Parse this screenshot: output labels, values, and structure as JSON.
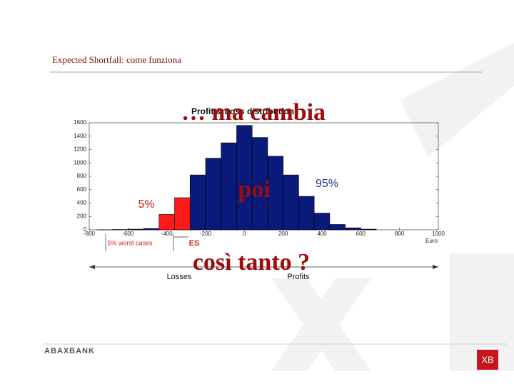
{
  "header": {
    "title": "Expected Shortfall: come funziona"
  },
  "chart_data": {
    "type": "histogram",
    "title": "Profit & Loss distribution",
    "bins": [
      -760,
      -680,
      -600,
      -520,
      -440,
      -360,
      -280,
      -200,
      -120,
      -40,
      40,
      120,
      200,
      280,
      360,
      440,
      520,
      600,
      680
    ],
    "counts": [
      2,
      5,
      10,
      20,
      230,
      480,
      820,
      1070,
      1300,
      1560,
      1380,
      1100,
      820,
      500,
      250,
      80,
      30,
      10
    ],
    "colors": [
      "#0a1a7a",
      "#0a1a7a",
      "#0a1a7a",
      "#0a1a7a",
      "#ff1a1a",
      "#ff1a1a",
      "#0a1a7a",
      "#0a1a7a",
      "#0a1a7a",
      "#0a1a7a",
      "#0a1a7a",
      "#0a1a7a",
      "#0a1a7a",
      "#0a1a7a",
      "#0a1a7a",
      "#0a1a7a",
      "#0a1a7a",
      "#0a1a7a"
    ],
    "xlim": [
      -800,
      1000
    ],
    "xticks": [
      -800,
      -600,
      -400,
      -200,
      0,
      200,
      400,
      600,
      800,
      1000
    ],
    "ylim": [
      0,
      1600
    ],
    "yticks": [
      0,
      200,
      400,
      600,
      800,
      1000,
      1200,
      1400,
      1600
    ],
    "x_unit": "Euro",
    "annotations": {
      "tail_pct": "5%",
      "body_pct": "95%",
      "es": "ES",
      "worst": "5% worst cases",
      "losses": "Losses",
      "profits": "Profits"
    }
  },
  "overlay": {
    "line1": "… ma cambia",
    "line2": "poi",
    "line3": "così tanto ?"
  },
  "footer": {
    "brand": "ABAXBANK",
    "logo": "XB"
  }
}
